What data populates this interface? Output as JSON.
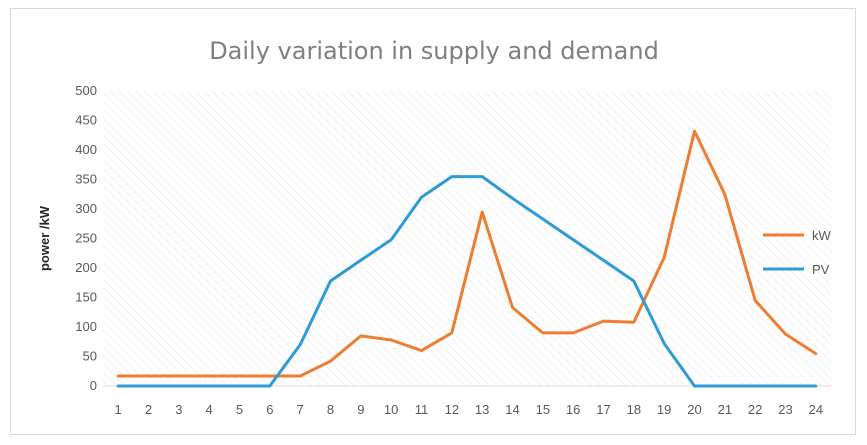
{
  "chart_data": {
    "type": "line",
    "title": "Daily variation in supply and demand",
    "xlabel": "",
    "ylabel": "power /kW",
    "categories": [
      "1",
      "2",
      "3",
      "4",
      "5",
      "6",
      "7",
      "8",
      "9",
      "10",
      "11",
      "12",
      "13",
      "14",
      "15",
      "16",
      "17",
      "18",
      "19",
      "20",
      "21",
      "22",
      "23",
      "24"
    ],
    "ylim": [
      0,
      500
    ],
    "yticks": [
      0,
      50,
      100,
      150,
      200,
      250,
      300,
      350,
      400,
      450,
      500
    ],
    "grid": "diagonal hatch background",
    "legend": "right",
    "series": [
      {
        "name": "kW",
        "color": "#ED7D31",
        "values": [
          17,
          17,
          17,
          17,
          17,
          17,
          17,
          42,
          85,
          78,
          60,
          90,
          295,
          133,
          90,
          90,
          110,
          108,
          218,
          432,
          325,
          145,
          88,
          55
        ]
      },
      {
        "name": "PV",
        "color": "#2E9BD6",
        "values": [
          0,
          0,
          0,
          0,
          0,
          0,
          70,
          178,
          213,
          248,
          320,
          355,
          355,
          318,
          283,
          248,
          213,
          178,
          72,
          0,
          0,
          0,
          0,
          0
        ]
      }
    ]
  }
}
